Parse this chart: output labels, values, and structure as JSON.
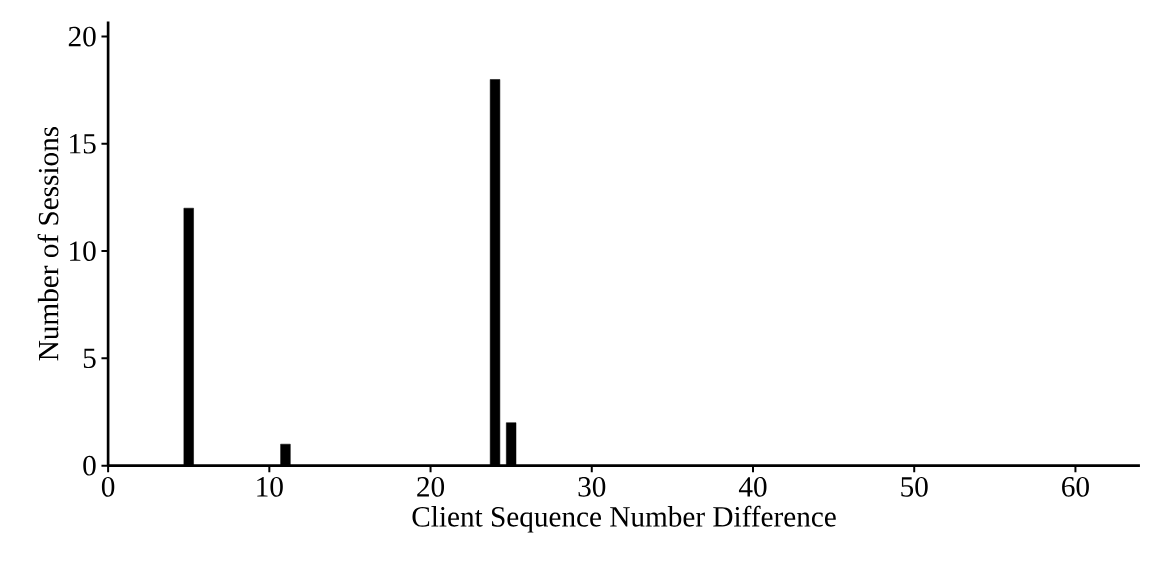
{
  "chart_data": {
    "type": "bar",
    "xlabel": "Client Sequence Number Difference",
    "ylabel": "Number of Sessions",
    "x": [
      5,
      11,
      24,
      25
    ],
    "values": [
      12,
      1,
      18,
      2
    ],
    "color": "#000000",
    "xlim": [
      0,
      64
    ],
    "ylim": [
      0,
      20.7
    ],
    "xticks": [
      0,
      10,
      20,
      30,
      40,
      50,
      60
    ],
    "yticks": [
      0,
      5,
      10,
      15,
      20
    ],
    "grid": false
  }
}
